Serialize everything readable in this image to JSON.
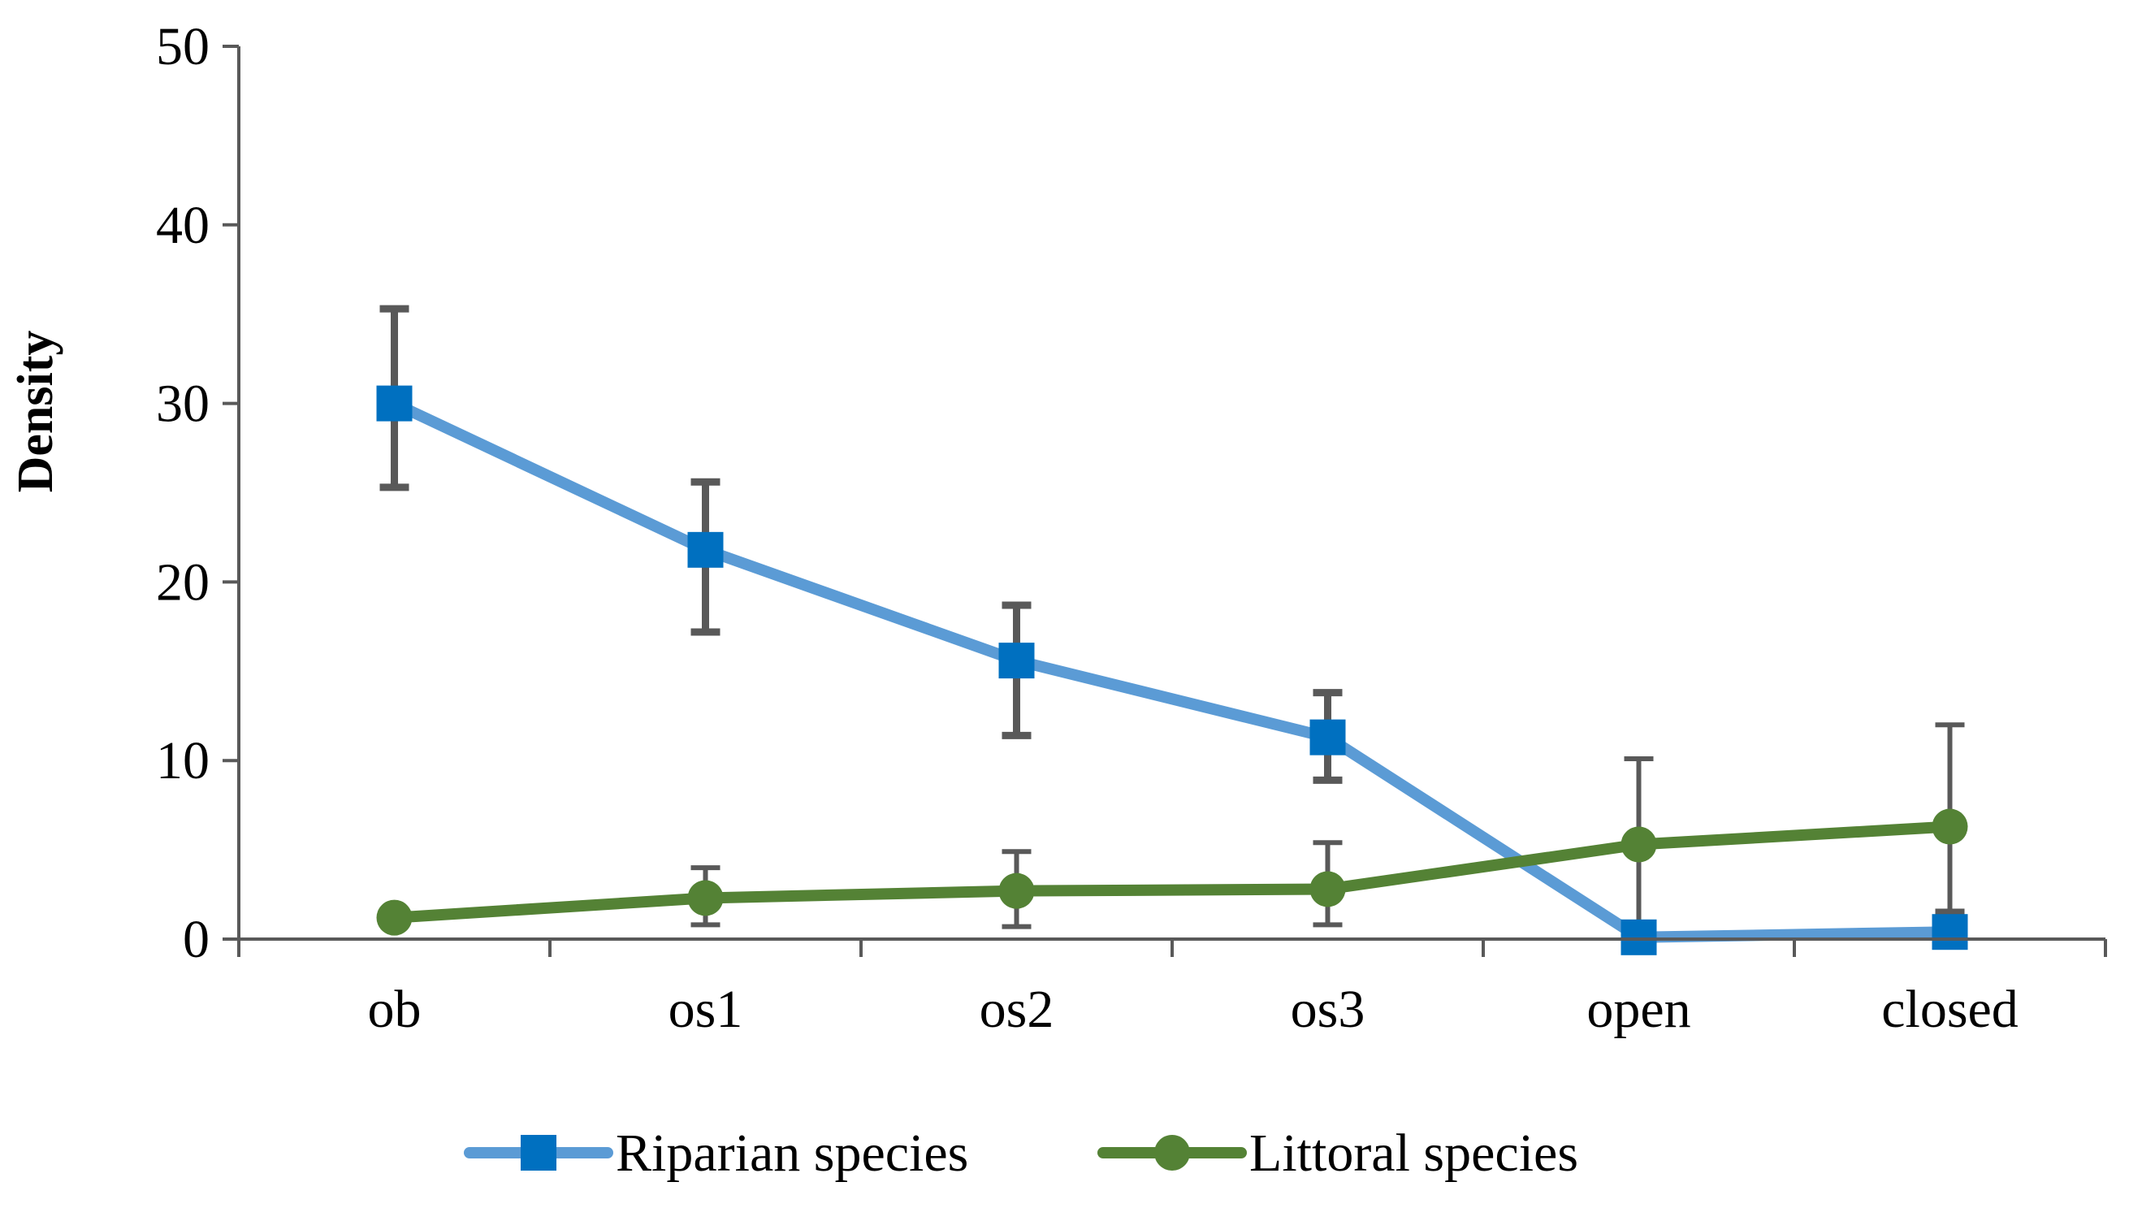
{
  "chart_data": {
    "type": "line",
    "title": "",
    "xlabel": "",
    "ylabel": "Density",
    "ylim": [
      0,
      50
    ],
    "yticks": [
      "0",
      "10",
      "20",
      "30",
      "40",
      "50"
    ],
    "categories": [
      "ob",
      "os1",
      "os2",
      "os3",
      "open",
      "closed"
    ],
    "grid": false,
    "legend_position": "bottom",
    "series": [
      {
        "name": "Riparian species",
        "marker": "square",
        "line_color": "#5b9bd5",
        "marker_color": "#0070c0",
        "values": [
          30.0,
          21.8,
          15.6,
          11.3,
          0.1,
          0.4
        ],
        "err_low": [
          4.7,
          4.6,
          4.2,
          2.4,
          0.0,
          0.0
        ],
        "err_high": [
          5.3,
          3.8,
          3.1,
          2.5,
          0.0,
          1.1
        ]
      },
      {
        "name": "Littoral species",
        "marker": "circle",
        "line_color": "#548235",
        "marker_color": "#548235",
        "values": [
          1.2,
          2.3,
          2.7,
          2.8,
          5.3,
          6.3
        ],
        "err_low": [
          0.0,
          1.5,
          2.0,
          2.0,
          5.2,
          6.2
        ],
        "err_high": [
          0.0,
          1.7,
          2.2,
          2.6,
          4.8,
          5.7
        ]
      }
    ],
    "error_bar_color": "#595959",
    "axis_color": "#595959"
  }
}
